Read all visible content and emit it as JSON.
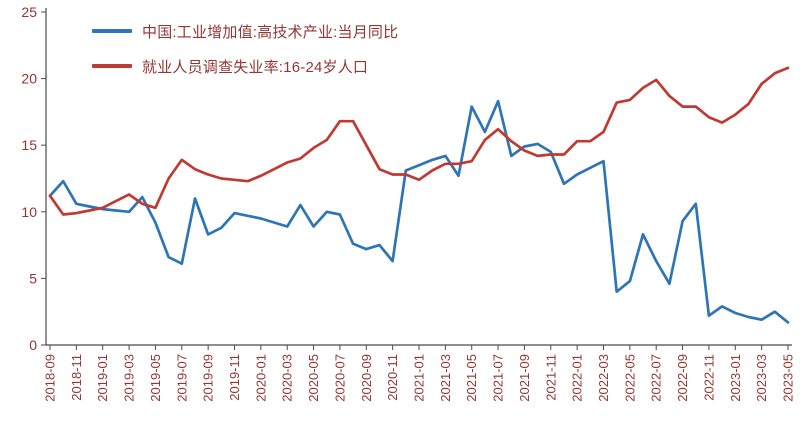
{
  "chart_data": {
    "type": "line",
    "title": "",
    "xlabel": "",
    "ylabel": "",
    "ylim": [
      0,
      25
    ],
    "yticks": [
      0,
      5,
      10,
      15,
      20,
      25
    ],
    "xtick_every": 2,
    "grid": false,
    "legend_position": "top-left",
    "axis_text_color": "#943634",
    "axis_line_color": "#4a4a4a",
    "categories": [
      "2018-09",
      "2018-10",
      "2018-11",
      "2018-12",
      "2019-01",
      "2019-02",
      "2019-03",
      "2019-04",
      "2019-05",
      "2019-06",
      "2019-07",
      "2019-08",
      "2019-09",
      "2019-10",
      "2019-11",
      "2019-12",
      "2020-01",
      "2020-02",
      "2020-03",
      "2020-04",
      "2020-05",
      "2020-06",
      "2020-07",
      "2020-08",
      "2020-09",
      "2020-10",
      "2020-11",
      "2020-12",
      "2021-01",
      "2021-02",
      "2021-03",
      "2021-04",
      "2021-05",
      "2021-06",
      "2021-07",
      "2021-08",
      "2021-09",
      "2021-10",
      "2021-11",
      "2021-12",
      "2022-01",
      "2022-02",
      "2022-03",
      "2022-04",
      "2022-05",
      "2022-06",
      "2022-07",
      "2022-08",
      "2022-09",
      "2022-10",
      "2022-11",
      "2022-12",
      "2023-01",
      "2023-02",
      "2023-03",
      "2023-04",
      "2023-05"
    ],
    "series": [
      {
        "name": "中国:工业增加值:高技术产业:当月同比",
        "color": "#2e75b6",
        "values": [
          11.2,
          12.3,
          10.6,
          10.4,
          10.2,
          10.1,
          10.0,
          11.1,
          9.2,
          6.6,
          6.1,
          11.0,
          8.3,
          8.8,
          9.9,
          9.7,
          9.5,
          9.2,
          8.9,
          10.5,
          8.9,
          10.0,
          9.8,
          7.6,
          7.2,
          7.5,
          6.3,
          13.1,
          13.5,
          13.9,
          14.2,
          12.7,
          17.9,
          16.0,
          18.3,
          14.2,
          14.9,
          15.1,
          14.5,
          12.1,
          12.8,
          13.3,
          13.8,
          4.0,
          4.8,
          8.3,
          6.3,
          4.6,
          9.3,
          10.6,
          2.2,
          2.9,
          2.4,
          2.1,
          1.9,
          2.5,
          1.7
        ]
      },
      {
        "name": "就业人员调查失业率:16-24岁人口",
        "color": "#bf3a32",
        "values": [
          11.2,
          9.8,
          9.9,
          10.1,
          10.3,
          10.8,
          11.3,
          10.6,
          10.3,
          12.5,
          13.9,
          13.2,
          12.8,
          12.5,
          12.4,
          12.3,
          12.7,
          13.2,
          13.7,
          14.0,
          14.8,
          15.4,
          16.8,
          16.8,
          15.0,
          13.2,
          12.8,
          12.8,
          12.4,
          13.1,
          13.6,
          13.6,
          13.8,
          15.4,
          16.2,
          15.3,
          14.6,
          14.2,
          14.3,
          14.3,
          15.3,
          15.3,
          16.0,
          18.2,
          18.4,
          19.3,
          19.9,
          18.7,
          17.9,
          17.9,
          17.1,
          16.7,
          17.3,
          18.1,
          19.6,
          20.4,
          20.8
        ]
      }
    ]
  }
}
